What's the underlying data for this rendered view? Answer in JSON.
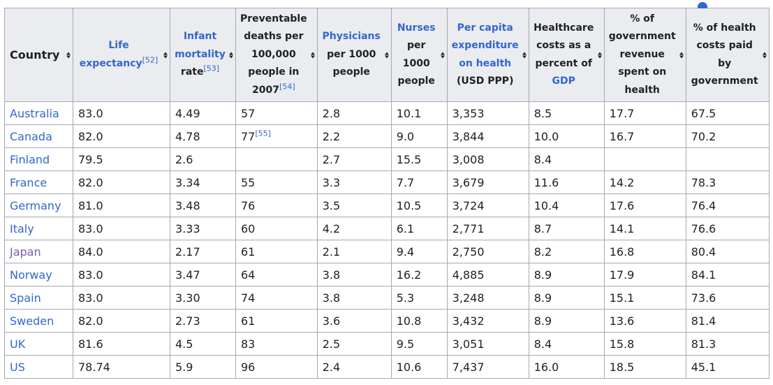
{
  "headers": [
    {
      "id": "country",
      "parts": [
        {
          "t": "Country"
        }
      ]
    },
    {
      "id": "life",
      "parts": [
        {
          "t": "Life expectancy",
          "link": true
        },
        {
          "sup": "[52]"
        }
      ]
    },
    {
      "id": "infant",
      "parts": [
        {
          "t": "Infant mortality",
          "link": true
        },
        {
          "t": " rate"
        },
        {
          "sup": "[53]"
        }
      ]
    },
    {
      "id": "preventable",
      "parts": [
        {
          "t": "Preventable deaths per 100,000 people in 2007"
        },
        {
          "sup": "[54]"
        }
      ]
    },
    {
      "id": "physicians",
      "parts": [
        {
          "t": "Physicians",
          "link": true
        },
        {
          "t": " per 1000 people"
        }
      ]
    },
    {
      "id": "nurses",
      "parts": [
        {
          "t": "Nurses",
          "link": true
        },
        {
          "t": " per 1000 people"
        }
      ]
    },
    {
      "id": "percapita",
      "parts": [
        {
          "t": "Per capita expenditure on health",
          "link": true
        },
        {
          "t": " (USD PPP)"
        }
      ]
    },
    {
      "id": "costs",
      "parts": [
        {
          "t": "Healthcare costs as a percent of "
        },
        {
          "t": "GDP",
          "link": true
        }
      ]
    },
    {
      "id": "govrevenue",
      "parts": [
        {
          "t": "% of government revenue spent on health"
        }
      ]
    },
    {
      "id": "govpaid",
      "parts": [
        {
          "t": "% of health costs paid by government"
        }
      ]
    }
  ],
  "rows": [
    {
      "country": "Australia",
      "visited": false,
      "cells": [
        "83.0",
        "4.49",
        "57",
        "2.8",
        "10.1",
        "3,353",
        "8.5",
        "17.7",
        "67.5"
      ]
    },
    {
      "country": "Canada",
      "visited": false,
      "cells": [
        "82.0",
        "4.78",
        "77",
        "2.2",
        "9.0",
        "3,844",
        "10.0",
        "16.7",
        "70.2"
      ],
      "sups": {
        "2": "[55]"
      }
    },
    {
      "country": "Finland",
      "visited": false,
      "cells": [
        "79.5",
        "2.6",
        "",
        "2.7",
        "15.5",
        "3,008",
        "8.4",
        "",
        ""
      ]
    },
    {
      "country": "France",
      "visited": false,
      "cells": [
        "82.0",
        "3.34",
        "55",
        "3.3",
        "7.7",
        "3,679",
        "11.6",
        "14.2",
        "78.3"
      ]
    },
    {
      "country": "Germany",
      "visited": false,
      "cells": [
        "81.0",
        "3.48",
        "76",
        "3.5",
        "10.5",
        "3,724",
        "10.4",
        "17.6",
        "76.4"
      ]
    },
    {
      "country": "Italy",
      "visited": false,
      "cells": [
        "83.0",
        "3.33",
        "60",
        "4.2",
        "6.1",
        "2,771",
        "8.7",
        "14.1",
        "76.6"
      ]
    },
    {
      "country": "Japan",
      "visited": true,
      "cells": [
        "84.0",
        "2.17",
        "61",
        "2.1",
        "9.4",
        "2,750",
        "8.2",
        "16.8",
        "80.4"
      ]
    },
    {
      "country": "Norway",
      "visited": false,
      "cells": [
        "83.0",
        "3.47",
        "64",
        "3.8",
        "16.2",
        "4,885",
        "8.9",
        "17.9",
        "84.1"
      ]
    },
    {
      "country": "Spain",
      "visited": false,
      "cells": [
        "83.0",
        "3.30",
        "74",
        "3.8",
        "5.3",
        "3,248",
        "8.9",
        "15.1",
        "73.6"
      ]
    },
    {
      "country": "Sweden",
      "visited": false,
      "cells": [
        "82.0",
        "2.73",
        "61",
        "3.6",
        "10.8",
        "3,432",
        "8.9",
        "13.6",
        "81.4"
      ]
    },
    {
      "country": "UK",
      "visited": false,
      "cells": [
        "81.6",
        "4.5",
        "83",
        "2.5",
        "9.5",
        "3,051",
        "8.4",
        "15.8",
        "81.3"
      ]
    },
    {
      "country": "US",
      "visited": false,
      "cells": [
        "78.74",
        "5.9",
        "96",
        "2.4",
        "10.6",
        "7,437",
        "16.0",
        "18.5",
        "45.1"
      ]
    }
  ],
  "colors": {
    "link": "#3366cc",
    "visited": "#795cb2",
    "header_bg": "#eaecf0",
    "border": "#a2a9b1"
  }
}
